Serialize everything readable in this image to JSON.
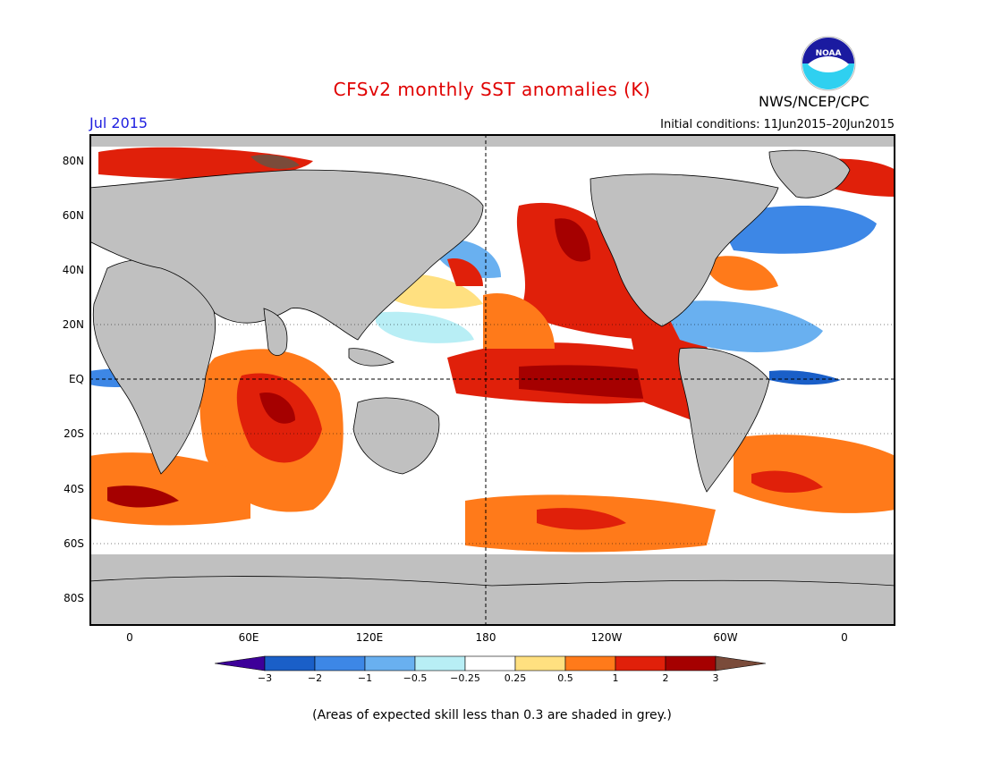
{
  "title": "CFSv2 monthly SST anomalies (K)",
  "month_label": "Jul 2015",
  "initial_conditions": "Initial conditions: 11Jun2015–20Jun2015",
  "agency": "NWS/NCEP/CPC",
  "logo_text": "NOAA",
  "lat_labels": [
    "80N",
    "60N",
    "40N",
    "20N",
    "EQ",
    "20S",
    "40S",
    "60S",
    "80S"
  ],
  "lon_labels": [
    "0",
    "60E",
    "120E",
    "180",
    "120W",
    "60W",
    "0"
  ],
  "colorbar": {
    "labels": [
      "−3",
      "−2",
      "−1",
      "−0.5",
      "−0.25",
      "0.25",
      "0.5",
      "1",
      "2",
      "3"
    ],
    "colors": [
      "#3d0099",
      "#1a5fc8",
      "#3d87e6",
      "#69b0f0",
      "#b8eef5",
      "#ffffff",
      "#ffe080",
      "#ff7a1a",
      "#e0200a",
      "#a50000",
      "#7a4b3a"
    ]
  },
  "land_color": "#c0c0c0",
  "note": "(Areas of expected skill less than 0.3 are shaded in grey.)"
}
